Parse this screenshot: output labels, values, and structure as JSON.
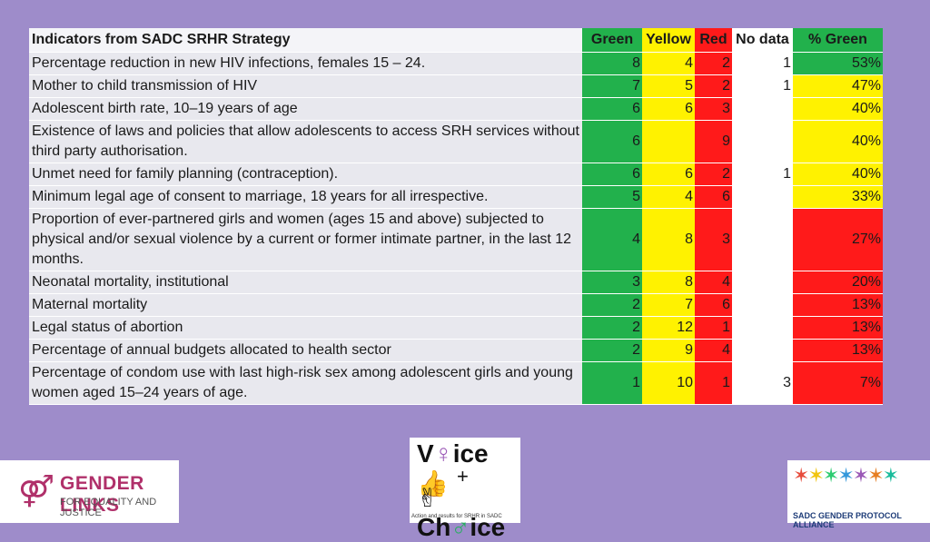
{
  "header": {
    "indicator": "Indicators from SADC SRHR Strategy",
    "green": "Green",
    "yellow": "Yellow",
    "red": "Red",
    "nodata": "No data",
    "pct": "% Green"
  },
  "rows": [
    {
      "label": "Percentage reduction in new HIV infections, females 15 – 24.",
      "green": "8",
      "yellow": "4",
      "red": "2",
      "nodata": "1",
      "pct": "53%",
      "pct_color": "green"
    },
    {
      "label": "Mother to child transmission of HIV",
      "green": "7",
      "yellow": "5",
      "red": "2",
      "nodata": "1",
      "pct": "47%",
      "pct_color": "yellow"
    },
    {
      "label": "Adolescent birth rate, 10–19 years of age",
      "green": "6",
      "yellow": "6",
      "red": "3",
      "nodata": "",
      "pct": "40%",
      "pct_color": "yellow"
    },
    {
      "label": "Existence of laws and policies that allow adolescents to access SRH services without third party authorisation.",
      "green": "6",
      "yellow": "",
      "red": "9",
      "nodata": "",
      "pct": "40%",
      "pct_color": "yellow"
    },
    {
      "label": "Unmet need for family planning (contraception).",
      "green": "6",
      "yellow": "6",
      "red": "2",
      "nodata": "1",
      "pct": "40%",
      "pct_color": "yellow"
    },
    {
      "label": "Minimum legal age of consent to marriage, 18 years for all irrespective.",
      "green": "5",
      "yellow": "4",
      "red": "6",
      "nodata": "",
      "pct": "33%",
      "pct_color": "yellow"
    },
    {
      "label": "Proportion of ever-partnered girls and women (ages 15 and above) subjected to physical and/or sexual violence by a current or former intimate partner, in the last 12 months.",
      "green": "4",
      "yellow": "8",
      "red": "3",
      "nodata": "",
      "pct": "27%",
      "pct_color": "red"
    },
    {
      "label": "Neonatal mortality, institutional",
      "green": "3",
      "yellow": "8",
      "red": "4",
      "nodata": "",
      "pct": "20%",
      "pct_color": "red"
    },
    {
      "label": "Maternal mortality",
      "green": "2",
      "yellow": "7",
      "red": "6",
      "nodata": "",
      "pct": "13%",
      "pct_color": "red"
    },
    {
      "label": "Legal status of abortion",
      "green": "2",
      "yellow": "12",
      "red": "1",
      "nodata": "",
      "pct": "13%",
      "pct_color": "red"
    },
    {
      "label": "Percentage of annual budgets allocated to health sector",
      "green": "2",
      "yellow": "9",
      "red": "4",
      "nodata": "",
      "pct": "13%",
      "pct_color": "red"
    },
    {
      "label": "Percentage of condom use with last high-risk sex among adolescent girls and young women aged 15–24 years of age.",
      "green": "1",
      "yellow": "10",
      "red": "1",
      "nodata": "3",
      "pct": "7%",
      "pct_color": "red"
    }
  ],
  "logos": {
    "gender_links": {
      "title": "GENDER LINKS",
      "subtitle": "FOR EQUALITY AND JUSTICE"
    },
    "voice_choice": {
      "line1": "Vice",
      "line2": "Chice",
      "tagline": "Action and results for SRHR in SADC"
    },
    "sadc_alliance": {
      "title": "SADC GENDER PROTOCOL ALLIANCE"
    }
  },
  "colors": {
    "green": "#22b14c",
    "yellow": "#fff200",
    "red": "#ff1a1a",
    "background": "#9e8cca"
  }
}
